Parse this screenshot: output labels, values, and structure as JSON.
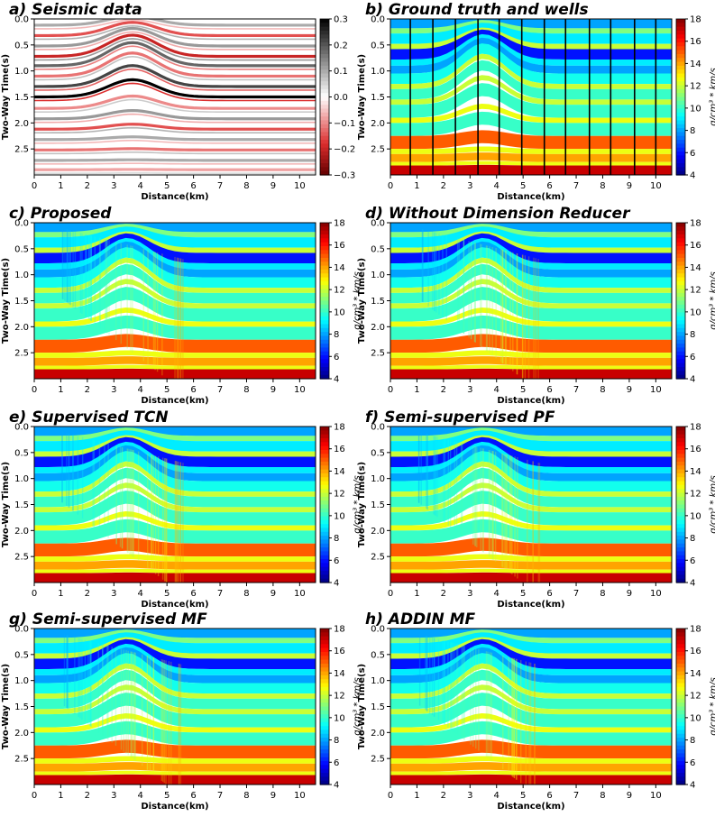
{
  "figure": {
    "panels": [
      {
        "title": "a) Seismic data",
        "kind": "seismic",
        "xlabel": "Distance(km)",
        "ylabel": "Two-Way Time(s)",
        "x_ticks": [
          "0",
          "1",
          "2",
          "3",
          "4",
          "5",
          "6",
          "7",
          "8",
          "9",
          "10"
        ],
        "y_ticks": [
          "0.0",
          "0.5",
          "1.0",
          "1.5",
          "2.0",
          "2.5"
        ],
        "colorbar_ticks": [
          "0.3",
          "0.2",
          "0.1",
          "0.0",
          "−0.1",
          "−0.2",
          "−0.3"
        ],
        "colorbar_label": ""
      },
      {
        "title": "b) Ground truth and wells",
        "kind": "truth",
        "xlabel": "Distance(km)",
        "ylabel": "Two-Way Time(s)",
        "x_ticks": [
          "0",
          "1",
          "2",
          "3",
          "4",
          "5",
          "6",
          "7",
          "8",
          "9",
          "10"
        ],
        "y_ticks": [
          "0.0",
          "0.5",
          "1.0",
          "1.5",
          "2.0",
          "2.5"
        ],
        "colorbar_ticks": [
          "18",
          "16",
          "14",
          "12",
          "10",
          "8",
          "6",
          "4"
        ],
        "colorbar_label": "g/cm³ * km/s"
      },
      {
        "title": "c) Proposed",
        "kind": "pred",
        "xlabel": "Distance(km)",
        "ylabel": "Two-Way Time(s)",
        "x_ticks": [
          "0",
          "1",
          "2",
          "3",
          "4",
          "5",
          "6",
          "7",
          "8",
          "9",
          "10"
        ],
        "y_ticks": [
          "0.0",
          "0.5",
          "1.0",
          "1.5",
          "2.0",
          "2.5"
        ],
        "colorbar_ticks": [
          "18",
          "16",
          "14",
          "12",
          "10",
          "8",
          "6",
          "4"
        ],
        "colorbar_label": "g/cm³ * km/s"
      },
      {
        "title": "d) Without Dimension Reducer",
        "kind": "pred",
        "xlabel": "Distance(km)",
        "ylabel": "Two-Way Time(s)",
        "x_ticks": [
          "0",
          "1",
          "2",
          "3",
          "4",
          "5",
          "6",
          "7",
          "8",
          "9",
          "10"
        ],
        "y_ticks": [
          "0.0",
          "0.5",
          "1.0",
          "1.5",
          "2.0",
          "2.5"
        ],
        "colorbar_ticks": [
          "18",
          "16",
          "14",
          "12",
          "10",
          "8",
          "6",
          "4"
        ],
        "colorbar_label": "g/cm³ * km/s"
      },
      {
        "title": "e) Supervised TCN",
        "kind": "pred",
        "xlabel": "Distance(km)",
        "ylabel": "Two-Way Time(s)",
        "x_ticks": [
          "0",
          "1",
          "2",
          "3",
          "4",
          "5",
          "6",
          "7",
          "8",
          "9",
          "10"
        ],
        "y_ticks": [
          "0.0",
          "0.5",
          "1.0",
          "1.5",
          "2.0",
          "2.5"
        ],
        "colorbar_ticks": [
          "18",
          "16",
          "14",
          "12",
          "10",
          "8",
          "6",
          "4"
        ],
        "colorbar_label": "g/cm³ * km/s"
      },
      {
        "title": "f) Semi-supervised PF",
        "kind": "pred",
        "xlabel": "Distance(km)",
        "ylabel": "Two-Way Time(s)",
        "x_ticks": [
          "0",
          "1",
          "2",
          "3",
          "4",
          "5",
          "6",
          "7",
          "8",
          "9",
          "10"
        ],
        "y_ticks": [
          "0.0",
          "0.5",
          "1.0",
          "1.5",
          "2.0",
          "2.5"
        ],
        "colorbar_ticks": [
          "18",
          "16",
          "14",
          "12",
          "10",
          "8",
          "6",
          "4"
        ],
        "colorbar_label": "g/cm³ * km/s"
      },
      {
        "title": "g) Semi-supervised MF",
        "kind": "pred",
        "xlabel": "Distance(km)",
        "ylabel": "Two-Way Time(s)",
        "x_ticks": [
          "0",
          "1",
          "2",
          "3",
          "4",
          "5",
          "6",
          "7",
          "8",
          "9",
          "10"
        ],
        "y_ticks": [
          "0.0",
          "0.5",
          "1.0",
          "1.5",
          "2.0",
          "2.5"
        ],
        "colorbar_ticks": [
          "18",
          "16",
          "14",
          "12",
          "10",
          "8",
          "6",
          "4"
        ],
        "colorbar_label": "g/cm³ * km/s"
      },
      {
        "title": "h) ADDIN MF",
        "kind": "pred",
        "xlabel": "Distance(km)",
        "ylabel": "Two-Way Time(s)",
        "x_ticks": [
          "0",
          "1",
          "2",
          "3",
          "4",
          "5",
          "6",
          "7",
          "8",
          "9",
          "10"
        ],
        "y_ticks": [
          "0.0",
          "0.5",
          "1.0",
          "1.5",
          "2.0",
          "2.5"
        ],
        "colorbar_ticks": [
          "18",
          "16",
          "14",
          "12",
          "10",
          "8",
          "6",
          "4"
        ],
        "colorbar_label": "g/cm³ * km/s"
      }
    ]
  },
  "chart_data": [
    {
      "type": "heatmap",
      "title": "a) Seismic data",
      "xlabel": "Distance(km)",
      "ylabel": "Two-Way Time(s)",
      "xlim": [
        0,
        10.6
      ],
      "ylim": [
        3.0,
        0.0
      ],
      "colormap": "seismic red-white-black",
      "clim": [
        -0.3,
        0.3
      ],
      "reflector_times_s": [
        0.12,
        0.32,
        0.52,
        0.72,
        0.9,
        1.1,
        1.3,
        1.5,
        1.72,
        1.92,
        2.12,
        2.32,
        2.52,
        2.72,
        2.9
      ],
      "reflector_amplitudes": [
        0.1,
        -0.15,
        0.12,
        -0.2,
        0.18,
        -0.12,
        0.22,
        0.3,
        -0.1,
        0.12,
        -0.15,
        0.1,
        -0.12,
        0.1,
        -0.08
      ]
    },
    {
      "type": "heatmap",
      "title": "b) Ground truth and wells",
      "xlabel": "Distance(km)",
      "ylabel": "Two-Way Time(s)",
      "xlim": [
        0,
        10.6
      ],
      "ylim": [
        3.0,
        0.0
      ],
      "colormap": "jet",
      "clim": [
        4,
        18
      ],
      "colorbar_label": "g/cm³ * km/s",
      "layers": [
        {
          "top_s": 0.0,
          "bottom_s": 0.18,
          "value": 8
        },
        {
          "top_s": 0.18,
          "bottom_s": 0.28,
          "value": 11
        },
        {
          "top_s": 0.28,
          "bottom_s": 0.48,
          "value": 9
        },
        {
          "top_s": 0.48,
          "bottom_s": 0.58,
          "value": 12
        },
        {
          "top_s": 0.58,
          "bottom_s": 0.78,
          "value": 6
        },
        {
          "top_s": 0.78,
          "bottom_s": 0.9,
          "value": 9
        },
        {
          "top_s": 0.9,
          "bottom_s": 1.05,
          "value": 8
        },
        {
          "top_s": 1.05,
          "bottom_s": 1.25,
          "value": 9.5
        },
        {
          "top_s": 1.25,
          "bottom_s": 1.35,
          "value": 12
        },
        {
          "top_s": 1.35,
          "bottom_s": 1.55,
          "value": 10
        },
        {
          "top_s": 1.55,
          "bottom_s": 1.65,
          "value": 12
        },
        {
          "top_s": 1.65,
          "bottom_s": 1.9,
          "value": 10
        },
        {
          "top_s": 1.9,
          "bottom_s": 2.0,
          "value": 12.5
        },
        {
          "top_s": 2.0,
          "bottom_s": 2.25,
          "value": 10
        },
        {
          "top_s": 2.25,
          "bottom_s": 2.5,
          "value": 15
        },
        {
          "top_s": 2.5,
          "bottom_s": 2.6,
          "value": 12.5
        },
        {
          "top_s": 2.6,
          "bottom_s": 2.75,
          "value": 14
        },
        {
          "top_s": 2.75,
          "bottom_s": 2.82,
          "value": 12.5
        },
        {
          "top_s": 2.82,
          "bottom_s": 3.0,
          "value": 17
        }
      ],
      "well_positions_km": [
        0.75,
        1.6,
        2.45,
        3.3,
        4.1,
        4.95,
        5.8,
        6.6,
        7.5,
        8.3,
        9.2,
        10.0
      ]
    },
    {
      "type": "heatmap",
      "title": "c) Proposed",
      "colormap": "jet",
      "clim": [
        4,
        18
      ],
      "xlim": [
        0,
        10.6
      ],
      "ylim": [
        3.0,
        0.0
      ],
      "colorbar_label": "g/cm³ * km/s"
    },
    {
      "type": "heatmap",
      "title": "d) Without Dimension Reducer",
      "colormap": "jet",
      "clim": [
        4,
        18
      ],
      "xlim": [
        0,
        10.6
      ],
      "ylim": [
        3.0,
        0.0
      ],
      "colorbar_label": "g/cm³ * km/s"
    },
    {
      "type": "heatmap",
      "title": "e) Supervised TCN",
      "colormap": "jet",
      "clim": [
        4,
        18
      ],
      "xlim": [
        0,
        10.6
      ],
      "ylim": [
        3.0,
        0.0
      ],
      "colorbar_label": "g/cm³ * km/s"
    },
    {
      "type": "heatmap",
      "title": "f) Semi-supervised PF",
      "colormap": "jet",
      "clim": [
        4,
        18
      ],
      "xlim": [
        0,
        10.6
      ],
      "ylim": [
        3.0,
        0.0
      ],
      "colorbar_label": "g/cm³ * km/s"
    },
    {
      "type": "heatmap",
      "title": "g) Semi-supervised MF",
      "colormap": "jet",
      "clim": [
        4,
        18
      ],
      "xlim": [
        0,
        10.6
      ],
      "ylim": [
        3.0,
        0.0
      ],
      "colorbar_label": "g/cm³ * km/s"
    },
    {
      "type": "heatmap",
      "title": "h) ADDIN MF",
      "colormap": "jet",
      "clim": [
        4,
        18
      ],
      "xlim": [
        0,
        10.6
      ],
      "ylim": [
        3.0,
        0.0
      ],
      "colorbar_label": "g/cm³ * km/s"
    }
  ]
}
